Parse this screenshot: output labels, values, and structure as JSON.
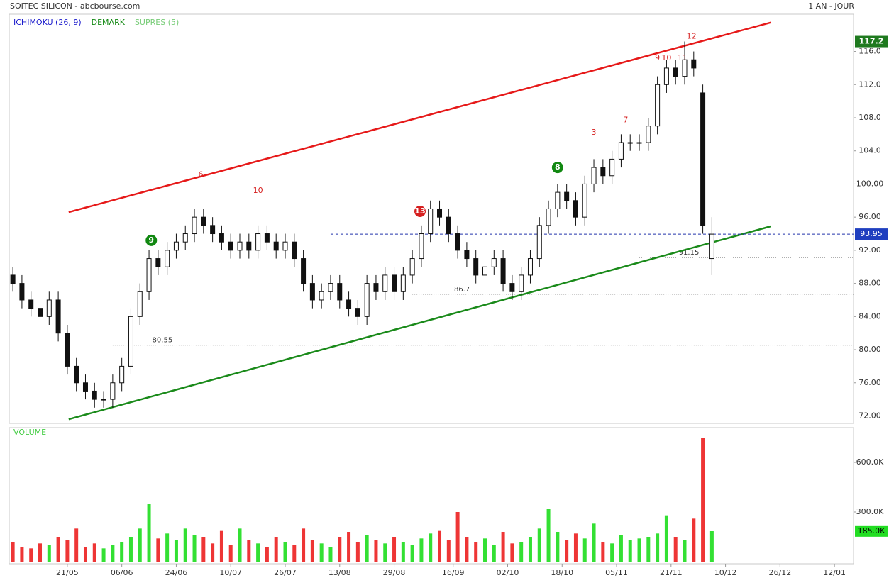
{
  "chart_data": [
    {
      "type": "candlestick",
      "title": "SOITEC SILICON - abcbourse.com",
      "period": "1 AN - JOUR",
      "indicators": [
        {
          "name": "ICHIMOKU (26, 9)",
          "color": "#1a1acc"
        },
        {
          "name": "DEMARK",
          "color": "#118811"
        },
        {
          "name": "SUPRES (5)",
          "color": "#77cc77"
        }
      ],
      "x": [
        0,
        2,
        4,
        6,
        8,
        10,
        12,
        14,
        16,
        18,
        20,
        22,
        24,
        26,
        28,
        30,
        32,
        34,
        36,
        38,
        40,
        42,
        44,
        46,
        48,
        50,
        52,
        54,
        56,
        58,
        60,
        62,
        64,
        66,
        68,
        70,
        72,
        74,
        76,
        78,
        80,
        82,
        84,
        86,
        88,
        90,
        92,
        94,
        96,
        98,
        100,
        102,
        104,
        106,
        108,
        110,
        112,
        114,
        116,
        118,
        120,
        122,
        124,
        126,
        128,
        130,
        132,
        134,
        136,
        138,
        140,
        142,
        144,
        146,
        148,
        150,
        152,
        154
      ],
      "open": [
        89,
        88,
        86,
        85,
        84,
        86,
        82,
        78,
        76,
        75,
        74,
        74,
        76,
        78,
        84,
        87,
        91,
        90,
        92,
        93,
        94,
        96,
        95,
        94,
        93,
        92,
        93,
        92,
        94,
        93,
        92,
        93,
        91,
        88,
        86,
        87,
        88,
        86,
        85,
        84,
        88,
        87,
        89,
        87,
        89,
        91,
        94,
        97,
        96,
        94,
        92,
        91,
        89,
        90,
        91,
        88,
        87,
        89,
        91,
        95,
        97,
        99,
        98,
        96,
        100,
        102,
        101,
        103,
        105,
        105,
        105,
        107,
        112,
        114,
        113,
        115,
        111,
        91
      ],
      "high": [
        90,
        89,
        87,
        86,
        87,
        87,
        83,
        79,
        77,
        76,
        75,
        77,
        79,
        85,
        88,
        92,
        92,
        93,
        94,
        95,
        97,
        97,
        96,
        95,
        94,
        94,
        94,
        95,
        95,
        94,
        94,
        94,
        92,
        89,
        88,
        89,
        89,
        87,
        86,
        89,
        89,
        90,
        90,
        90,
        92,
        95,
        98,
        98,
        97,
        95,
        93,
        92,
        91,
        92,
        92,
        89,
        90,
        92,
        96,
        98,
        100,
        100,
        99,
        101,
        103,
        103,
        104,
        106,
        106,
        106,
        108,
        113,
        115,
        115,
        117.2,
        116,
        112,
        96
      ],
      "low": [
        87,
        85,
        84,
        83,
        83,
        81,
        77,
        75,
        74,
        73,
        73,
        73,
        75,
        77,
        83,
        86,
        89,
        89,
        91,
        92,
        93,
        94,
        93,
        92,
        91,
        91,
        91,
        91,
        92,
        91,
        91,
        90,
        87,
        85,
        85,
        86,
        85,
        84,
        83,
        83,
        86,
        86,
        86,
        86,
        88,
        90,
        93,
        95,
        93,
        91,
        90,
        88,
        88,
        89,
        87,
        86,
        86,
        88,
        90,
        94,
        96,
        97,
        95,
        95,
        99,
        100,
        100,
        102,
        104,
        104,
        104,
        106,
        111,
        112,
        112,
        113,
        94,
        89
      ],
      "close": [
        88,
        86,
        85,
        84,
        86,
        82,
        78,
        76,
        75,
        74,
        74,
        76,
        78,
        84,
        87,
        91,
        90,
        92,
        93,
        94,
        96,
        95,
        94,
        93,
        92,
        93,
        92,
        94,
        93,
        92,
        93,
        91,
        88,
        86,
        87,
        88,
        86,
        85,
        84,
        88,
        87,
        89,
        87,
        89,
        91,
        94,
        97,
        96,
        94,
        92,
        91,
        89,
        90,
        91,
        88,
        87,
        89,
        91,
        95,
        97,
        99,
        98,
        96,
        100,
        102,
        101,
        103,
        105,
        105,
        105,
        107,
        112,
        114,
        113,
        115,
        114,
        95,
        93.95
      ],
      "xlim": [
        -0.8,
        185.2
      ],
      "ylim": [
        71.1,
        120.5
      ],
      "yticks": [
        {
          "value": 72,
          "label": "72.00"
        },
        {
          "value": 76,
          "label": "76.00"
        },
        {
          "value": 80,
          "label": "80.00"
        },
        {
          "value": 84,
          "label": "84.00"
        },
        {
          "value": 88,
          "label": "88.00"
        },
        {
          "value": 92,
          "label": "92.00"
        },
        {
          "value": 96,
          "label": "96.00"
        },
        {
          "value": 100,
          "label": "100.00"
        },
        {
          "value": 104,
          "label": "104.0"
        },
        {
          "value": 108,
          "label": "108.0"
        },
        {
          "value": 112,
          "label": "112.0"
        },
        {
          "value": 116,
          "label": "116.0"
        }
      ],
      "trendlines": [
        {
          "color": "#e61919",
          "x": [
            12.3,
            167
          ],
          "y": [
            96.6,
            119.5
          ]
        },
        {
          "color": "#1a8a1a",
          "x": [
            12.3,
            167
          ],
          "y": [
            71.6,
            94.9
          ]
        }
      ],
      "levels": [
        {
          "value": 80.55,
          "from": 22
        },
        {
          "value": 86.7,
          "from": 88
        },
        {
          "value": 91.15,
          "from": 138
        }
      ],
      "demark": [
        {
          "x": 41.4,
          "y": 101.1,
          "text": "6",
          "color": "#d62020"
        },
        {
          "x": 54,
          "y": 99.2,
          "text": "10",
          "color": "#d62020"
        },
        {
          "x": 128,
          "y": 106.2,
          "text": "3",
          "color": "#d62020"
        },
        {
          "x": 135,
          "y": 107.7,
          "text": "7",
          "color": "#d62020"
        },
        {
          "x": 142,
          "y": 115.2,
          "text": "9",
          "color": "#d62020"
        },
        {
          "x": 144,
          "y": 115.2,
          "text": "10",
          "color": "#d62020"
        },
        {
          "x": 147.5,
          "y": 115.2,
          "text": "11",
          "color": "#d62020"
        },
        {
          "x": 149.5,
          "y": 117.8,
          "text": "12",
          "color": "#d62020"
        },
        {
          "x": 89.7,
          "y": 96.7,
          "text": "13",
          "color": "#d62020",
          "circle": true
        },
        {
          "x": 120,
          "y": 102,
          "text": "8",
          "color": "#118811",
          "circle": true
        },
        {
          "x": 30.5,
          "y": 93.2,
          "text": "9",
          "color": "#118811",
          "circle": true
        }
      ]
    },
    {
      "type": "bar",
      "title": "VOLUME",
      "values": [
        120000,
        90000,
        80000,
        110000,
        100000,
        150000,
        130000,
        200000,
        90000,
        110000,
        80000,
        100000,
        120000,
        150000,
        200000,
        350000,
        140000,
        170000,
        130000,
        200000,
        160000,
        150000,
        110000,
        190000,
        100000,
        200000,
        130000,
        110000,
        90000,
        150000,
        120000,
        100000,
        200000,
        130000,
        110000,
        90000,
        150000,
        180000,
        120000,
        160000,
        130000,
        110000,
        150000,
        120000,
        100000,
        140000,
        170000,
        190000,
        130000,
        300000,
        150000,
        120000,
        140000,
        100000,
        180000,
        110000,
        120000,
        150000,
        200000,
        320000,
        180000,
        130000,
        170000,
        140000,
        230000,
        120000,
        110000,
        160000,
        130000,
        140000,
        150000,
        170000,
        280000,
        150000,
        130000,
        260000,
        750000,
        185000
      ],
      "last_value_label": "185.0K",
      "colors": {
        "up": "#33e033",
        "down": "#ee3535"
      },
      "ylim": [
        0,
        810000
      ],
      "yticks": [
        {
          "value": 300000,
          "label": "300.0K"
        },
        {
          "value": 600000,
          "label": "600.0K"
        }
      ],
      "xticks": [
        {
          "value": 12,
          "label": "21/05"
        },
        {
          "value": 24,
          "label": "06/06"
        },
        {
          "value": 36,
          "label": "24/06"
        },
        {
          "value": 48,
          "label": "10/07"
        },
        {
          "value": 60,
          "label": "26/07"
        },
        {
          "value": 72,
          "label": "13/08"
        },
        {
          "value": 84,
          "label": "29/08"
        },
        {
          "value": 97,
          "label": "16/09"
        },
        {
          "value": 109,
          "label": "02/10"
        },
        {
          "value": 121,
          "label": "18/10"
        },
        {
          "value": 133,
          "label": "05/11"
        },
        {
          "value": 145,
          "label": "21/11"
        },
        {
          "value": 157,
          "label": "10/12"
        },
        {
          "value": 169,
          "label": "26/12"
        },
        {
          "value": 181,
          "label": "12/01"
        }
      ]
    }
  ]
}
